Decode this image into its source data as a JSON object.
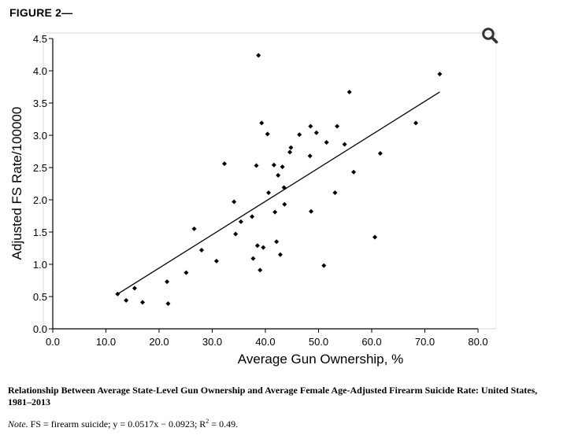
{
  "figure_label": "FIGURE 2—",
  "caption": "Relationship Between Average State-Level Gun Ownership and Average Female Age-Adjusted Firearm Suicide Rate: United States, 1981–2013",
  "note": {
    "prefix": "Note.",
    "text": "FS = firearm suicide; y = 0.0517x − 0.0923; R",
    "sup": "2",
    "suffix": " = 0.49."
  },
  "zoom_icon": "magnifier-icon",
  "chart_data": {
    "type": "scatter",
    "xlabel": "Average Gun Ownership, %",
    "ylabel": "Adjusted FS Rate/100000",
    "xlim": [
      0,
      80
    ],
    "ylim": [
      0,
      4.5
    ],
    "x_ticks": [
      "0.0",
      "10.0",
      "20.0",
      "30.0",
      "40.0",
      "50.0",
      "60.0",
      "70.0",
      "80.0"
    ],
    "y_ticks": [
      "0.0",
      "0.5",
      "1.0",
      "1.5",
      "2.0",
      "2.5",
      "3.0",
      "3.5",
      "4.0",
      "4.5"
    ],
    "grid": false,
    "points": [
      [
        12.2,
        0.54
      ],
      [
        13.8,
        0.44
      ],
      [
        15.4,
        0.63
      ],
      [
        16.9,
        0.41
      ],
      [
        21.5,
        0.73
      ],
      [
        21.7,
        0.39
      ],
      [
        25.1,
        0.87
      ],
      [
        26.6,
        1.55
      ],
      [
        28.0,
        1.22
      ],
      [
        30.8,
        1.05
      ],
      [
        32.3,
        2.56
      ],
      [
        34.1,
        1.97
      ],
      [
        34.4,
        1.47
      ],
      [
        35.4,
        1.66
      ],
      [
        37.5,
        1.74
      ],
      [
        37.7,
        1.09
      ],
      [
        38.3,
        2.53
      ],
      [
        38.5,
        1.29
      ],
      [
        38.7,
        4.24
      ],
      [
        39.0,
        0.91
      ],
      [
        39.3,
        3.19
      ],
      [
        39.6,
        1.26
      ],
      [
        40.4,
        3.02
      ],
      [
        40.6,
        2.11
      ],
      [
        41.6,
        2.54
      ],
      [
        41.8,
        1.81
      ],
      [
        42.1,
        1.35
      ],
      [
        42.4,
        2.38
      ],
      [
        42.8,
        1.15
      ],
      [
        43.2,
        2.51
      ],
      [
        43.5,
        2.19
      ],
      [
        43.6,
        1.93
      ],
      [
        44.6,
        2.74
      ],
      [
        44.8,
        2.81
      ],
      [
        46.4,
        3.01
      ],
      [
        48.4,
        2.68
      ],
      [
        48.5,
        3.14
      ],
      [
        48.6,
        1.82
      ],
      [
        49.6,
        3.04
      ],
      [
        51.0,
        0.98
      ],
      [
        51.5,
        2.89
      ],
      [
        53.1,
        2.11
      ],
      [
        53.5,
        3.14
      ],
      [
        54.9,
        2.86
      ],
      [
        55.8,
        3.67
      ],
      [
        56.6,
        2.43
      ],
      [
        60.6,
        1.42
      ],
      [
        61.6,
        2.72
      ],
      [
        68.3,
        3.19
      ],
      [
        72.8,
        3.95
      ]
    ],
    "trendline": {
      "slope": 0.0517,
      "intercept": -0.0923,
      "x_range": [
        12.2,
        72.8
      ]
    }
  }
}
